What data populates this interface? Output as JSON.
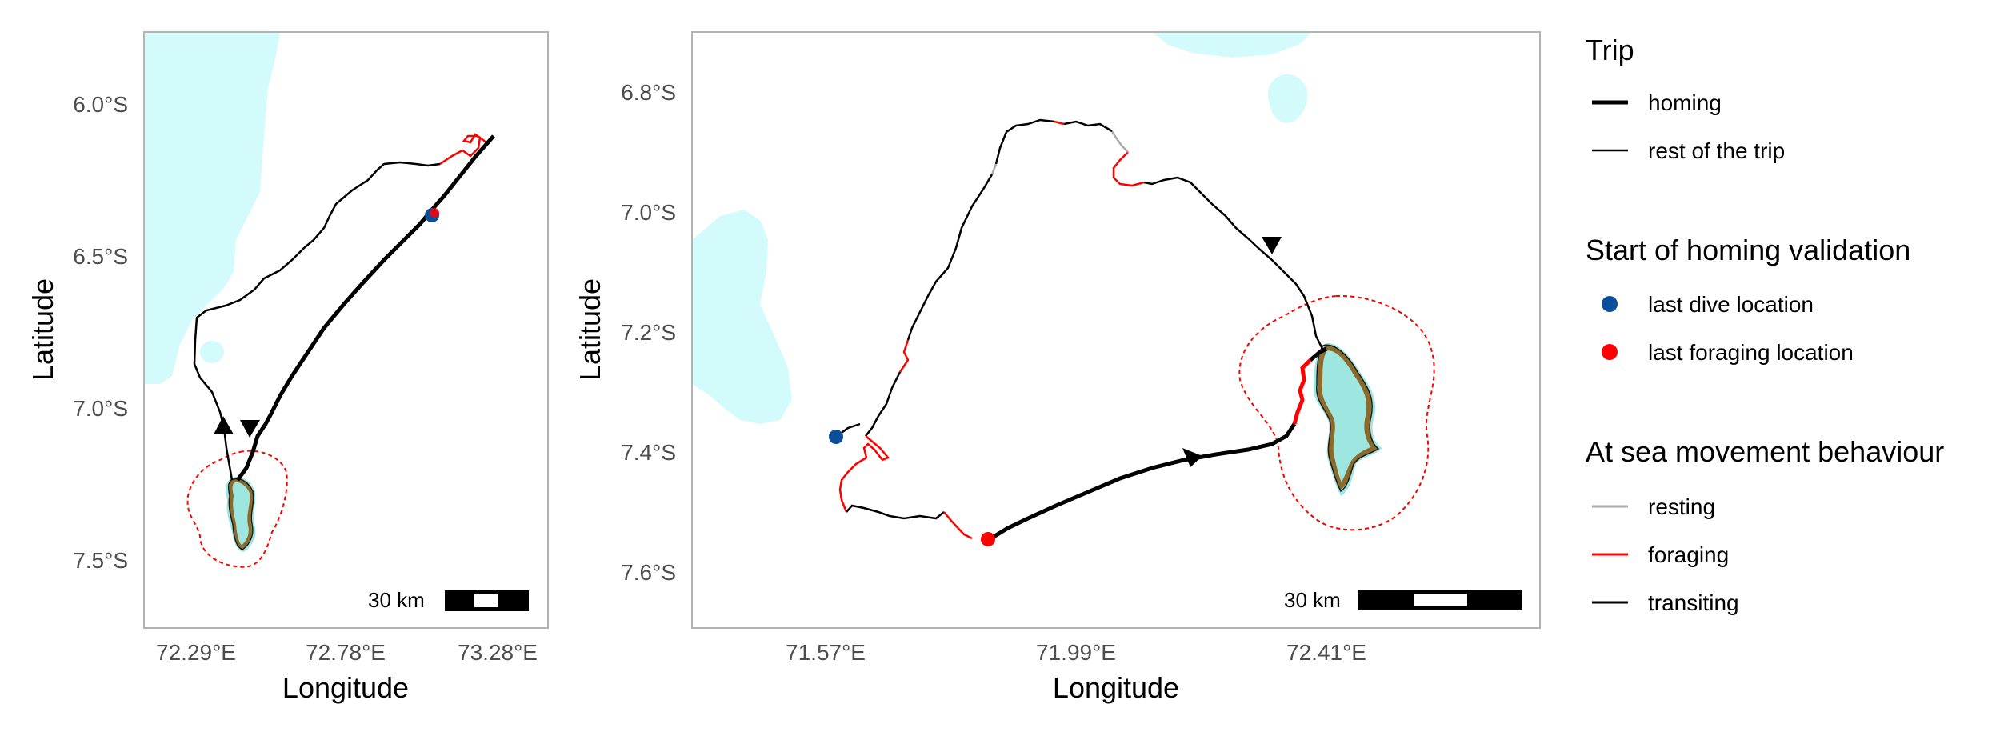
{
  "maps": [
    {
      "x_axis_label": "Longitude",
      "y_axis_label": "Latitude",
      "x_ticks": [
        "72.29°E",
        "72.78°E",
        "73.28°E"
      ],
      "y_ticks": [
        "6.0°S",
        "6.5°S",
        "7.0°S",
        "7.5°S"
      ],
      "scale_bar_label": "30 km"
    },
    {
      "x_axis_label": "Longitude",
      "y_axis_label": "Latitude",
      "x_ticks": [
        "71.57°E",
        "71.99°E",
        "72.41°E"
      ],
      "y_ticks": [
        "6.8°S",
        "7.0°S",
        "7.2°S",
        "7.4°S",
        "7.6°S"
      ],
      "scale_bar_label": "30 km"
    }
  ],
  "legend": {
    "trip": {
      "title": "Trip",
      "items": [
        {
          "label": "homing",
          "color": "#000000"
        },
        {
          "label": "rest of the trip",
          "color": "#000000"
        }
      ]
    },
    "homing_validation": {
      "title": "Start of homing validation",
      "items": [
        {
          "label": "last dive location",
          "color": "#0b4f9a"
        },
        {
          "label": "last foraging location",
          "color": "#ff0000"
        }
      ]
    },
    "behaviour": {
      "title": "At sea movement behaviour",
      "items": [
        {
          "label": "resting",
          "color": "#aaaaaa"
        },
        {
          "label": "foraging",
          "color": "#ff0000"
        },
        {
          "label": "transiting",
          "color": "#000000"
        }
      ]
    }
  },
  "colors": {
    "shallow_water": "#d4fbfb",
    "island_land": "#8b6a2a",
    "island_reef": "#9ee6e0",
    "buffer_line": "#ff0000",
    "panel_border": "#b3b3b3"
  }
}
